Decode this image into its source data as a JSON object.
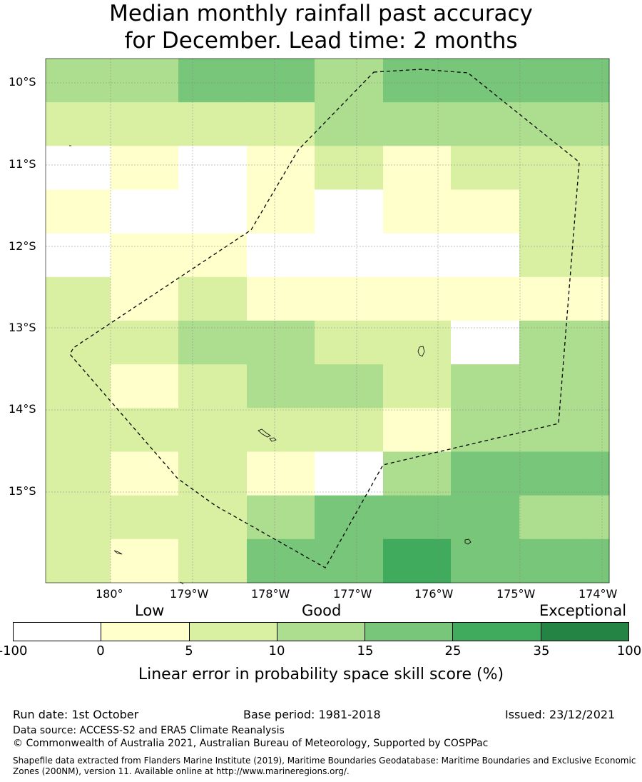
{
  "title": {
    "line1": "Median monthly rainfall past accuracy",
    "line2": "for December. Lead time: 2 months"
  },
  "map": {
    "lat_labels": [
      "10°S",
      "11°S",
      "12°S",
      "13°S",
      "14°S",
      "15°S"
    ],
    "lon_labels": [
      "180°",
      "179°W",
      "178°W",
      "177°W",
      "176°W",
      "175°W",
      "174°W"
    ],
    "grid_cells": [
      [
        3,
        3,
        4,
        4,
        3,
        4,
        4,
        4
      ],
      [
        2,
        2,
        2,
        2,
        3,
        3,
        3,
        3
      ],
      [
        0,
        1,
        0,
        1,
        2,
        1,
        2,
        2
      ],
      [
        1,
        0,
        0,
        1,
        0,
        1,
        1,
        2
      ],
      [
        0,
        1,
        1,
        0,
        0,
        0,
        0,
        2
      ],
      [
        2,
        1,
        2,
        1,
        1,
        1,
        1,
        1
      ],
      [
        2,
        2,
        3,
        3,
        2,
        2,
        0,
        3
      ],
      [
        2,
        1,
        2,
        3,
        3,
        2,
        3,
        3
      ],
      [
        2,
        2,
        2,
        2,
        2,
        1,
        3,
        3
      ],
      [
        2,
        1,
        2,
        1,
        0,
        3,
        4,
        4
      ],
      [
        2,
        2,
        2,
        3,
        4,
        4,
        4,
        3
      ],
      [
        2,
        1,
        2,
        4,
        4,
        5,
        4,
        4
      ]
    ],
    "colors": {
      "boundary": "#000000",
      "grid": "#888888",
      "land": "#000000"
    }
  },
  "colorbar": {
    "category_labels": [
      "Low",
      "Good",
      "Exceptional"
    ],
    "ticks": [
      "-100",
      "0",
      "5",
      "10",
      "15",
      "25",
      "35",
      "100"
    ],
    "colors": [
      "#ffffff",
      "#ffffcc",
      "#d9f0a3",
      "#addd8e",
      "#78c679",
      "#41ab5d",
      "#238443"
    ],
    "label": "Linear error in probability space skill score (%)"
  },
  "footer": {
    "run_date": "Run date: 1st October",
    "base_period": "Base period: 1981-2018",
    "issued": "Issued: 23/12/2021",
    "data_source": "Data source: ACCESS-S2 and ERA5 Climate Reanalysis",
    "copyright": "© Commonwealth of Australia 2021, Australian Bureau of Meteorology, Supported by COSPPac",
    "shapefile": "Shapefile data extracted from Flanders Marine Institute (2019), Maritime Boundaries Geodatabase: Maritime Boundaries and Exclusive Economic Zones (200NM), version 11. Available online at http://www.marineregions.org/."
  }
}
